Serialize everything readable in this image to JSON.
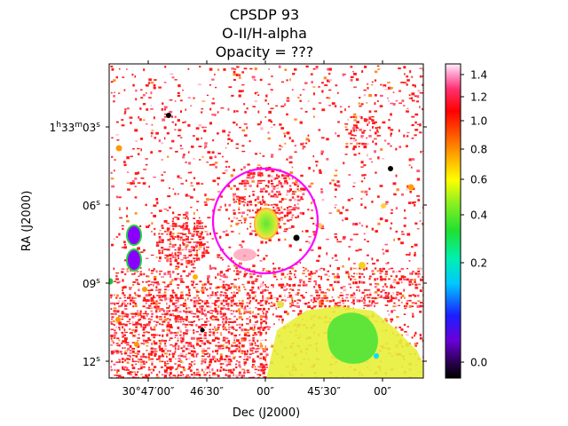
{
  "chart_data": {
    "type": "heatmap",
    "title_lines": [
      "CPSDP 93",
      "O-II/H-alpha",
      "Opacity = ???"
    ],
    "xlabel": "Dec (J2000)",
    "ylabel": "RA (J2000)",
    "x_ticks": [
      {
        "label": "30°47′00″",
        "value": 0
      },
      {
        "label": "46′30″",
        "value": 30
      },
      {
        "label": "00″",
        "value": 60
      },
      {
        "label": "45′30″",
        "value": 90
      },
      {
        "label": "00″",
        "value": 120
      }
    ],
    "y_ticks": [
      {
        "label": "1h33m03s",
        "value": 3
      },
      {
        "label": "06s",
        "value": 6
      },
      {
        "label": "09s",
        "value": 9
      },
      {
        "label": "12s",
        "value": 12
      }
    ],
    "colorbar": {
      "colormap": "gist_ncar-like (black → purple → blue → cyan → green → yellow → orange → red → pink → white)",
      "range": [
        -0.07,
        1.47
      ],
      "scale": "nonlinear (stretched)",
      "ticks": [
        {
          "label": "0.0",
          "value": 0.0
        },
        {
          "label": "0.2",
          "value": 0.2
        },
        {
          "label": "0.4",
          "value": 0.4
        },
        {
          "label": "0.6",
          "value": 0.6
        },
        {
          "label": "0.8",
          "value": 0.8
        },
        {
          "label": "1.0",
          "value": 1.0
        },
        {
          "label": "1.2",
          "value": 1.2
        },
        {
          "label": "1.4",
          "value": 1.4
        }
      ]
    },
    "aperture": {
      "shape": "circle",
      "color": "#ff00ff"
    },
    "colors": {
      "background": "#ffffff",
      "low_ratio_red": "#ff1a1a",
      "pink": "#ff6b8a",
      "green_core": "#5fe53a",
      "yellow": "#e8f03a",
      "aperture": "#ff00ff"
    }
  }
}
